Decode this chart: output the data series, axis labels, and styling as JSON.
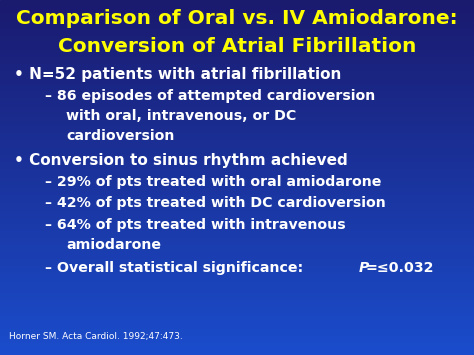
{
  "title_line1": "Comparison of Oral vs. IV Amiodarone:",
  "title_line2": "Conversion of Atrial Fibrillation",
  "title_color": "#FFFF00",
  "body_color": "#FFFFFF",
  "footer_color": "#FFFFFF",
  "bullet1": "N=52 patients with atrial fibrillation",
  "sub1a": "86 episodes of attempted cardioversion",
  "sub1b": "with oral, intravenous, or DC",
  "sub1c": "cardioversion",
  "bullet2": "Conversion to sinus rhythm achieved",
  "sub2": "29% of pts treated with oral amiodarone",
  "sub3": "42% of pts treated with DC cardioversion",
  "sub4a": "64% of pts treated with intravenous",
  "sub4b": "amiodarone",
  "sub5_pre": "– Overall statistical significance: ",
  "sub5_p": "P",
  "sub5_post": "=≤0.032",
  "footer": "Horner SM. Acta Cardiol. 1992;47:473.",
  "title_fontsize": 14.5,
  "bullet_fontsize": 11.0,
  "sub_fontsize": 10.2,
  "footer_fontsize": 6.5,
  "bg_top": "#1a1a6e",
  "bg_bottom": "#1a4dcc"
}
